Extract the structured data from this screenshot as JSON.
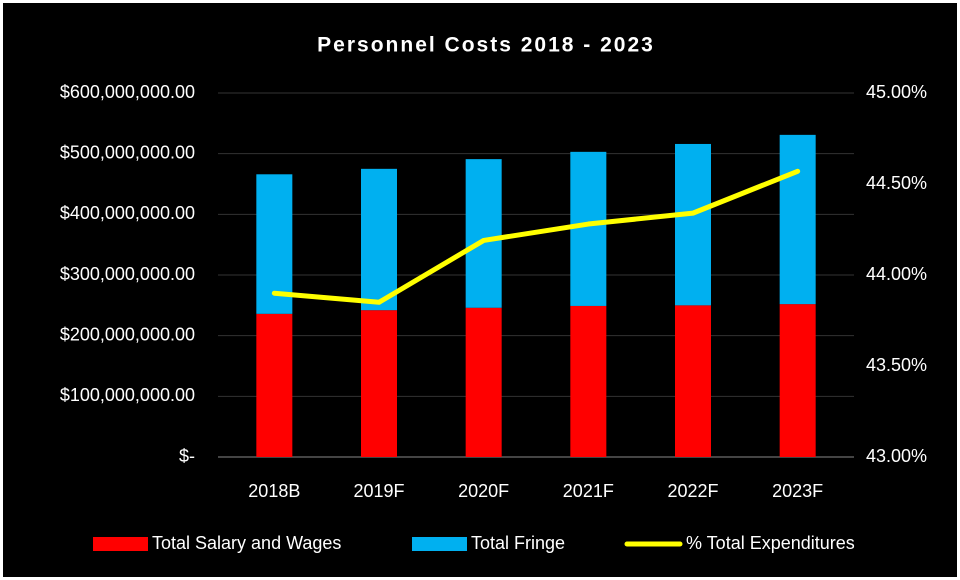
{
  "chart_data": {
    "type": "bar",
    "stacked": true,
    "title": "Personnel Costs 2018 - 2023",
    "categories": [
      "2018B",
      "2019F",
      "2020F",
      "2021F",
      "2022F",
      "2023F"
    ],
    "series": [
      {
        "name": "Total Salary and Wages",
        "color": "#ff0000",
        "type": "bar",
        "axis": "y",
        "values": [
          236000000,
          242000000,
          246000000,
          249000000,
          250000000,
          252000000
        ]
      },
      {
        "name": "Total Fringe",
        "color": "#00b0f0",
        "type": "bar",
        "axis": "y",
        "values": [
          230000000,
          233000000,
          245000000,
          254000000,
          266000000,
          279000000
        ]
      },
      {
        "name": "% Total Expenditures",
        "color": "#ffff00",
        "type": "line",
        "axis": "y2",
        "values": [
          43.9,
          43.85,
          44.19,
          44.28,
          44.34,
          44.57
        ]
      }
    ],
    "ylim": [
      0,
      600000000
    ],
    "yticks": [
      {
        "value": 0,
        "label": "$-"
      },
      {
        "value": 100000000,
        "label": "$100,000,000.00"
      },
      {
        "value": 200000000,
        "label": "$200,000,000.00"
      },
      {
        "value": 300000000,
        "label": "$300,000,000.00"
      },
      {
        "value": 400000000,
        "label": "$400,000,000.00"
      },
      {
        "value": 500000000,
        "label": "$500,000,000.00"
      },
      {
        "value": 600000000,
        "label": "$600,000,000.00"
      }
    ],
    "y2lim": [
      43,
      45
    ],
    "y2ticks": [
      {
        "value": 43,
        "label": "43.00%"
      },
      {
        "value": 43.5,
        "label": "43.50%"
      },
      {
        "value": 44,
        "label": "44.00%"
      },
      {
        "value": 44.5,
        "label": "44.50%"
      },
      {
        "value": 45,
        "label": "45.00%"
      }
    ],
    "grid": true,
    "legend": "bottom"
  }
}
